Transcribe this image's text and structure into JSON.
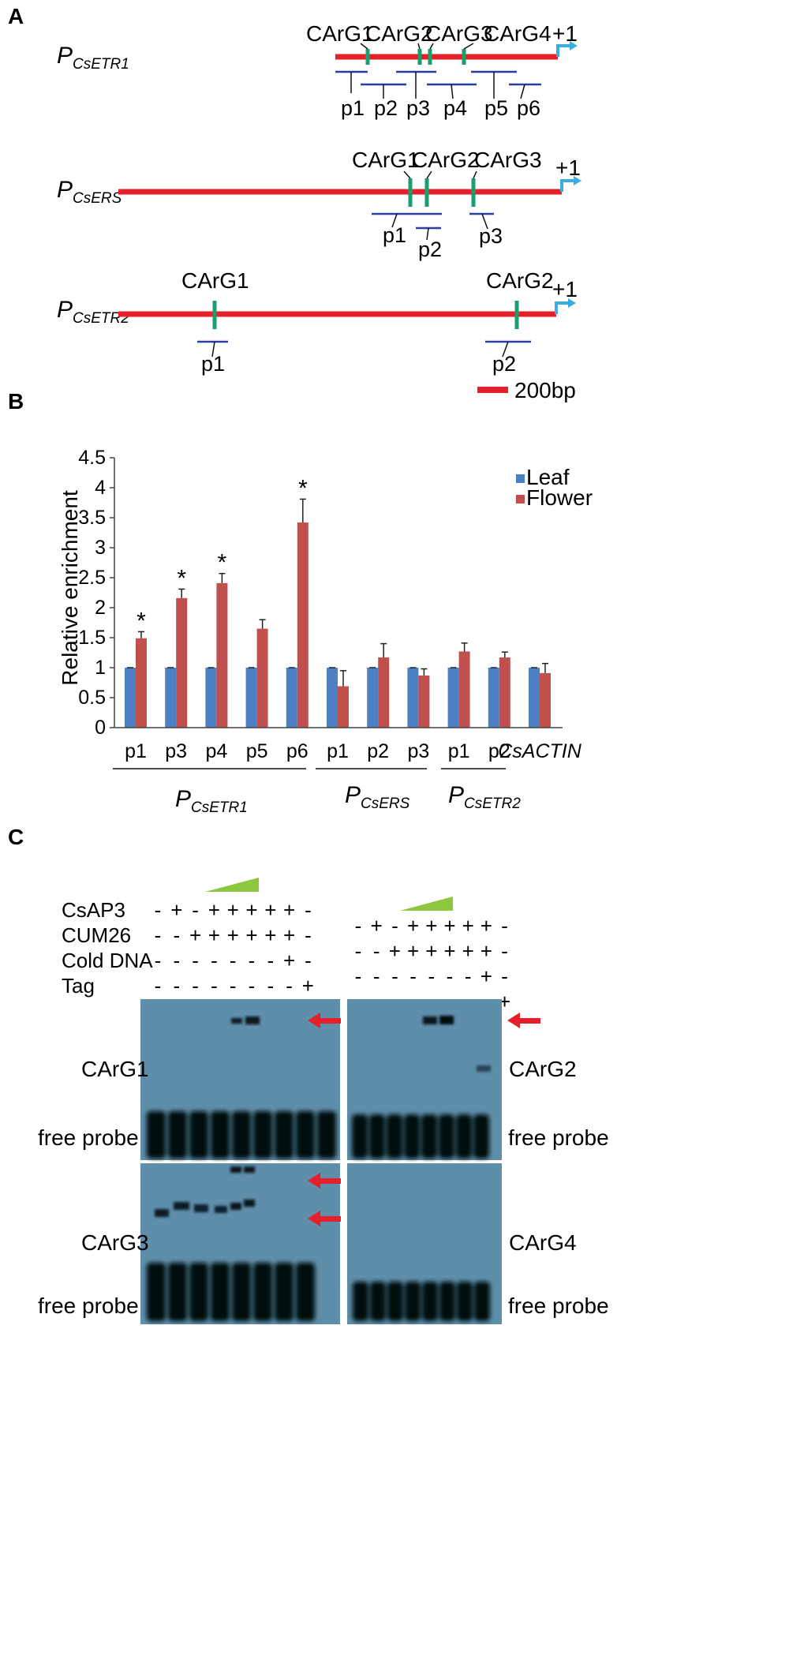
{
  "panels": {
    "a": "A",
    "b": "B",
    "c": "C"
  },
  "colors": {
    "promoter": "#e5202a",
    "carg": "#1a9e6e",
    "fragment": "#2d3d9a",
    "arrow": "#3aaee0",
    "leaf": "#4c7fc4",
    "flower": "#c0504d",
    "gel": "#5e8eaa",
    "wedge": "#8dc63f"
  },
  "panel_a": {
    "start_label": "+1",
    "scale_bar": "200bp",
    "promoters": [
      {
        "name_main": "P",
        "name_sub": "CsETR1",
        "cargs": [
          "CArG1",
          "CArG2",
          "CArG3",
          "CArG4"
        ],
        "fragments": [
          "p1",
          "p2",
          "p3",
          "p4",
          "p5",
          "p6"
        ]
      },
      {
        "name_main": "P",
        "name_sub": "CsERS",
        "cargs": [
          "CArG1",
          "CArG2",
          "CArG3"
        ],
        "fragments": [
          "p1",
          "p2",
          "p3"
        ]
      },
      {
        "name_main": "P",
        "name_sub": "CsETR2",
        "cargs": [
          "CArG1",
          "CArG2"
        ],
        "fragments": [
          "p1",
          "p2"
        ]
      }
    ]
  },
  "chart_data": {
    "type": "bar",
    "ylabel": "Relative enrichment",
    "ylim": [
      0,
      4.5
    ],
    "yticks": [
      "0",
      "0.5",
      "1",
      "1.5",
      "2",
      "2.5",
      "3",
      "3.5",
      "4",
      "4.5"
    ],
    "categories": [
      "p1",
      "p3",
      "p4",
      "p5",
      "p6",
      "p1",
      "p2",
      "p3",
      "p1",
      "p2",
      "CsACTIN"
    ],
    "series": [
      {
        "name": "Leaf",
        "values": [
          1,
          1,
          1,
          1,
          1,
          1,
          1,
          1,
          1,
          1,
          1
        ],
        "errors": [
          0,
          0,
          0,
          0,
          0,
          0,
          0,
          0,
          0,
          0,
          0
        ]
      },
      {
        "name": "Flower",
        "values": [
          1.49,
          2.16,
          2.41,
          1.65,
          3.42,
          0.69,
          1.17,
          0.87,
          1.27,
          1.17,
          0.91
        ],
        "errors": [
          0.11,
          0.15,
          0.16,
          0.15,
          0.39,
          0.26,
          0.23,
          0.11,
          0.14,
          0.09,
          0.16
        ]
      }
    ],
    "significance": [
      "*",
      "*",
      "*",
      "",
      "*",
      "",
      "",
      "",
      "",
      "",
      ""
    ],
    "groups": [
      {
        "main": "P",
        "sub": "CsETR1",
        "from": 0,
        "to": 4
      },
      {
        "main": "P",
        "sub": "CsERS",
        "from": 5,
        "to": 7
      },
      {
        "main": "P",
        "sub": "CsETR2",
        "from": 8,
        "to": 9
      }
    ],
    "legend_position": "top-right"
  },
  "panel_c": {
    "row_labels": [
      "CsAP3",
      "CUM26",
      "Cold DNA",
      "Tag"
    ],
    "matrix": [
      [
        "-",
        "+",
        "-",
        "+",
        "+",
        "+",
        "+",
        "+",
        "-"
      ],
      [
        "-",
        "-",
        "+",
        "+",
        "+",
        "+",
        "+",
        "+",
        "-"
      ],
      [
        "-",
        "-",
        "-",
        "-",
        "-",
        "-",
        "-",
        "+",
        "-"
      ],
      [
        "-",
        "-",
        "-",
        "-",
        "-",
        "-",
        "-",
        "-",
        "+"
      ]
    ],
    "gels": [
      {
        "name": "CArG1",
        "free": "free probe"
      },
      {
        "name": "CArG2",
        "free": "free probe"
      },
      {
        "name": "CArG3",
        "free": "free probe"
      },
      {
        "name": "CArG4",
        "free": "free probe"
      }
    ]
  }
}
